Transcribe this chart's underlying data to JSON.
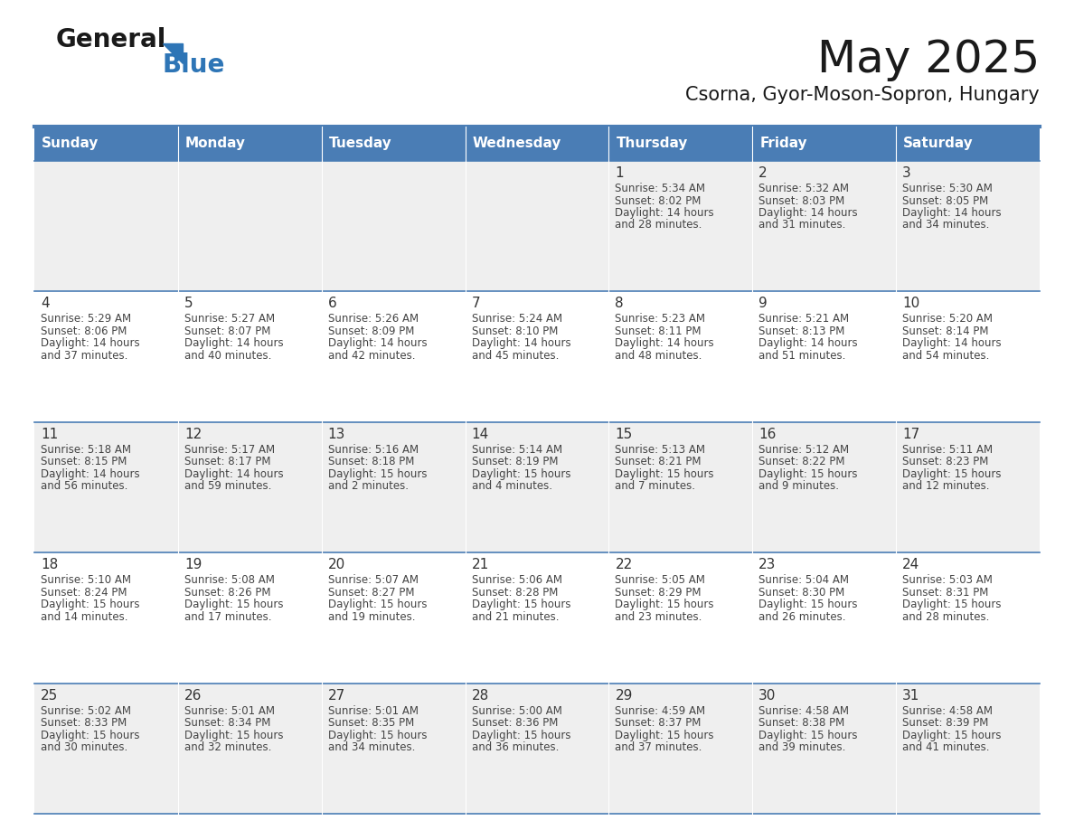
{
  "title": "May 2025",
  "subtitle": "Csorna, Gyor-Moson-Sopron, Hungary",
  "header_bg_color": "#4a7db5",
  "header_text_color": "#ffffff",
  "day_names": [
    "Sunday",
    "Monday",
    "Tuesday",
    "Wednesday",
    "Thursday",
    "Friday",
    "Saturday"
  ],
  "row_colors": [
    "#efefef",
    "#ffffff",
    "#efefef",
    "#ffffff",
    "#efefef"
  ],
  "border_color": "#4a7db5",
  "text_color": "#444444",
  "number_color": "#333333",
  "calendar_data": [
    [
      {
        "day": "",
        "info": ""
      },
      {
        "day": "",
        "info": ""
      },
      {
        "day": "",
        "info": ""
      },
      {
        "day": "",
        "info": ""
      },
      {
        "day": "1",
        "info": "Sunrise: 5:34 AM\nSunset: 8:02 PM\nDaylight: 14 hours\nand 28 minutes."
      },
      {
        "day": "2",
        "info": "Sunrise: 5:32 AM\nSunset: 8:03 PM\nDaylight: 14 hours\nand 31 minutes."
      },
      {
        "day": "3",
        "info": "Sunrise: 5:30 AM\nSunset: 8:05 PM\nDaylight: 14 hours\nand 34 minutes."
      }
    ],
    [
      {
        "day": "4",
        "info": "Sunrise: 5:29 AM\nSunset: 8:06 PM\nDaylight: 14 hours\nand 37 minutes."
      },
      {
        "day": "5",
        "info": "Sunrise: 5:27 AM\nSunset: 8:07 PM\nDaylight: 14 hours\nand 40 minutes."
      },
      {
        "day": "6",
        "info": "Sunrise: 5:26 AM\nSunset: 8:09 PM\nDaylight: 14 hours\nand 42 minutes."
      },
      {
        "day": "7",
        "info": "Sunrise: 5:24 AM\nSunset: 8:10 PM\nDaylight: 14 hours\nand 45 minutes."
      },
      {
        "day": "8",
        "info": "Sunrise: 5:23 AM\nSunset: 8:11 PM\nDaylight: 14 hours\nand 48 minutes."
      },
      {
        "day": "9",
        "info": "Sunrise: 5:21 AM\nSunset: 8:13 PM\nDaylight: 14 hours\nand 51 minutes."
      },
      {
        "day": "10",
        "info": "Sunrise: 5:20 AM\nSunset: 8:14 PM\nDaylight: 14 hours\nand 54 minutes."
      }
    ],
    [
      {
        "day": "11",
        "info": "Sunrise: 5:18 AM\nSunset: 8:15 PM\nDaylight: 14 hours\nand 56 minutes."
      },
      {
        "day": "12",
        "info": "Sunrise: 5:17 AM\nSunset: 8:17 PM\nDaylight: 14 hours\nand 59 minutes."
      },
      {
        "day": "13",
        "info": "Sunrise: 5:16 AM\nSunset: 8:18 PM\nDaylight: 15 hours\nand 2 minutes."
      },
      {
        "day": "14",
        "info": "Sunrise: 5:14 AM\nSunset: 8:19 PM\nDaylight: 15 hours\nand 4 minutes."
      },
      {
        "day": "15",
        "info": "Sunrise: 5:13 AM\nSunset: 8:21 PM\nDaylight: 15 hours\nand 7 minutes."
      },
      {
        "day": "16",
        "info": "Sunrise: 5:12 AM\nSunset: 8:22 PM\nDaylight: 15 hours\nand 9 minutes."
      },
      {
        "day": "17",
        "info": "Sunrise: 5:11 AM\nSunset: 8:23 PM\nDaylight: 15 hours\nand 12 minutes."
      }
    ],
    [
      {
        "day": "18",
        "info": "Sunrise: 5:10 AM\nSunset: 8:24 PM\nDaylight: 15 hours\nand 14 minutes."
      },
      {
        "day": "19",
        "info": "Sunrise: 5:08 AM\nSunset: 8:26 PM\nDaylight: 15 hours\nand 17 minutes."
      },
      {
        "day": "20",
        "info": "Sunrise: 5:07 AM\nSunset: 8:27 PM\nDaylight: 15 hours\nand 19 minutes."
      },
      {
        "day": "21",
        "info": "Sunrise: 5:06 AM\nSunset: 8:28 PM\nDaylight: 15 hours\nand 21 minutes."
      },
      {
        "day": "22",
        "info": "Sunrise: 5:05 AM\nSunset: 8:29 PM\nDaylight: 15 hours\nand 23 minutes."
      },
      {
        "day": "23",
        "info": "Sunrise: 5:04 AM\nSunset: 8:30 PM\nDaylight: 15 hours\nand 26 minutes."
      },
      {
        "day": "24",
        "info": "Sunrise: 5:03 AM\nSunset: 8:31 PM\nDaylight: 15 hours\nand 28 minutes."
      }
    ],
    [
      {
        "day": "25",
        "info": "Sunrise: 5:02 AM\nSunset: 8:33 PM\nDaylight: 15 hours\nand 30 minutes."
      },
      {
        "day": "26",
        "info": "Sunrise: 5:01 AM\nSunset: 8:34 PM\nDaylight: 15 hours\nand 32 minutes."
      },
      {
        "day": "27",
        "info": "Sunrise: 5:01 AM\nSunset: 8:35 PM\nDaylight: 15 hours\nand 34 minutes."
      },
      {
        "day": "28",
        "info": "Sunrise: 5:00 AM\nSunset: 8:36 PM\nDaylight: 15 hours\nand 36 minutes."
      },
      {
        "day": "29",
        "info": "Sunrise: 4:59 AM\nSunset: 8:37 PM\nDaylight: 15 hours\nand 37 minutes."
      },
      {
        "day": "30",
        "info": "Sunrise: 4:58 AM\nSunset: 8:38 PM\nDaylight: 15 hours\nand 39 minutes."
      },
      {
        "day": "31",
        "info": "Sunrise: 4:58 AM\nSunset: 8:39 PM\nDaylight: 15 hours\nand 41 minutes."
      }
    ]
  ],
  "logo_text_general": "General",
  "logo_text_blue": "Blue",
  "logo_color_general": "#1a1a1a",
  "logo_color_blue": "#2e75b6",
  "logo_triangle_color": "#2e75b6",
  "title_fontsize": 36,
  "subtitle_fontsize": 15,
  "header_fontsize": 11,
  "day_num_fontsize": 11,
  "info_fontsize": 8.5
}
